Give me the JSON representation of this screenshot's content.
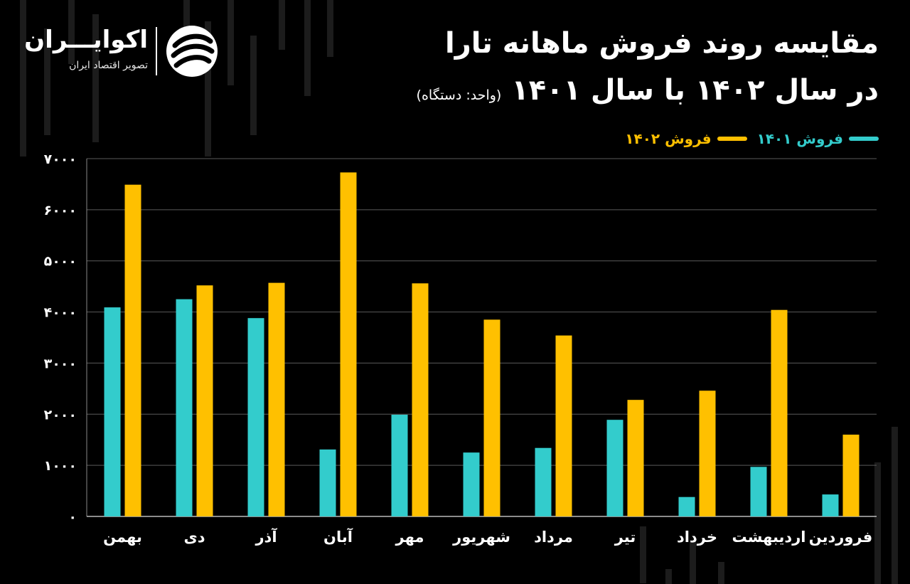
{
  "header": {
    "title_line1": "مقایسه روند فروش ماهانه تارا",
    "title_line2": "در سال ۱۴۰۲ با سال ۱۴۰۱",
    "unit": "(واحد: دستگاه)"
  },
  "brand": {
    "name": "اکوایـــران",
    "tagline": "تصویر اقتصاد ایران"
  },
  "colors": {
    "series_1401": "#33cccc",
    "series_1402": "#ffc000",
    "grid": "#5a5a5a",
    "background": "#000000"
  },
  "chart_data": {
    "type": "bar",
    "title": "مقایسه روند فروش ماهانه تارا در سال ۱۴۰۲ با سال ۱۴۰۱",
    "xlabel": "",
    "ylabel": "",
    "ylim": [
      0,
      7000
    ],
    "yticks": [
      0,
      1000,
      2000,
      3000,
      4000,
      5000,
      6000,
      7000
    ],
    "ytick_labels": [
      "۰",
      "۱۰۰۰",
      "۲۰۰۰",
      "۳۰۰۰",
      "۴۰۰۰",
      "۵۰۰۰",
      "۶۰۰۰",
      "۷۰۰۰"
    ],
    "legend_position": "top-right",
    "grid": true,
    "categories": [
      "فروردین",
      "اردیبهشت",
      "خرداد",
      "تیر",
      "مرداد",
      "شهریور",
      "مهر",
      "آبان",
      "آذر",
      "دی",
      "بهمن"
    ],
    "series": [
      {
        "name": "فروش ۱۴۰۱",
        "color": "#33cccc",
        "values": [
          430,
          970,
          380,
          1890,
          1340,
          1250,
          1990,
          1310,
          3880,
          4250,
          4090
        ]
      },
      {
        "name": "فروش ۱۴۰۲",
        "color": "#ffc000",
        "values": [
          1600,
          4040,
          2460,
          2280,
          3540,
          3850,
          4560,
          6730,
          4570,
          4520,
          6490
        ]
      }
    ]
  }
}
